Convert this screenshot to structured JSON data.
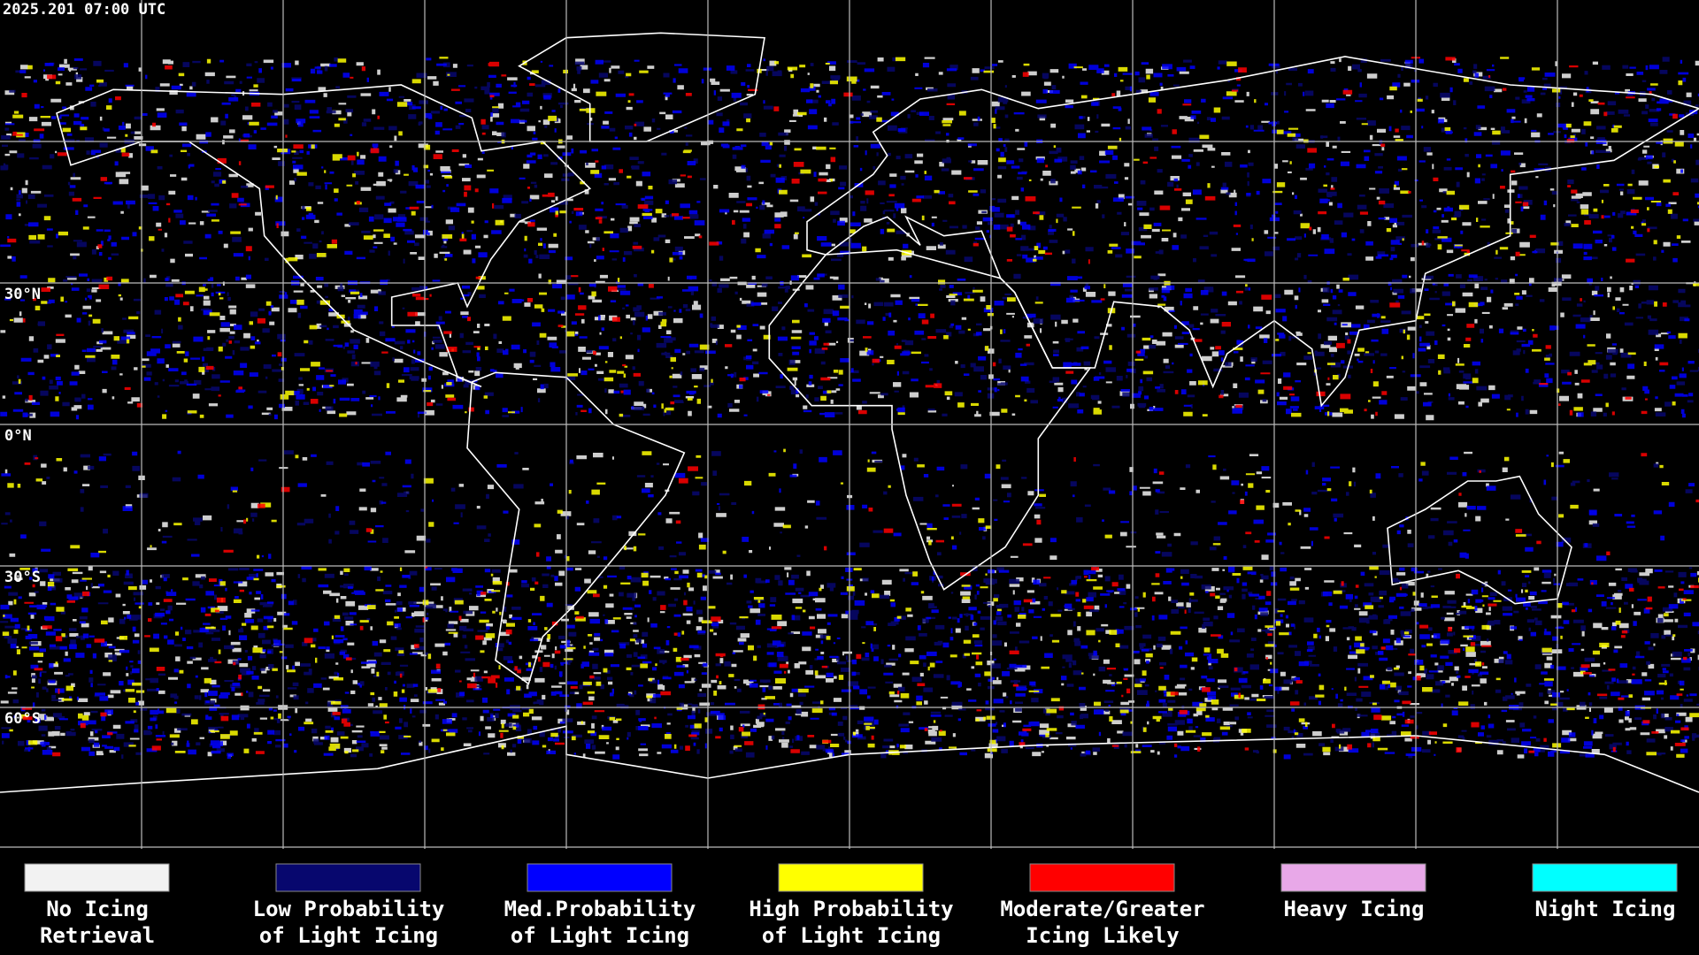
{
  "header": {
    "timestamp": "2025.201 07:00 UTC"
  },
  "map": {
    "lat_labels": [
      "30°N",
      "0°N",
      "30°S",
      "60°S"
    ]
  },
  "legend": {
    "items": [
      {
        "color": "#f2f2f2",
        "lines": [
          "No Icing",
          "Retrieval"
        ]
      },
      {
        "color": "#07076e",
        "lines": [
          "Low Probability",
          "of Light Icing"
        ]
      },
      {
        "color": "#0000ff",
        "lines": [
          "Med.Probability",
          "of Light Icing"
        ]
      },
      {
        "color": "#ffff00",
        "lines": [
          "High Probability",
          "of Light Icing"
        ]
      },
      {
        "color": "#ff0000",
        "lines": [
          "Moderate/Greater",
          "Icing Likely"
        ]
      },
      {
        "color": "#e8a8e8",
        "lines": [
          "Heavy Icing"
        ]
      },
      {
        "color": "#00ffff",
        "lines": [
          "Night Icing"
        ]
      }
    ]
  }
}
